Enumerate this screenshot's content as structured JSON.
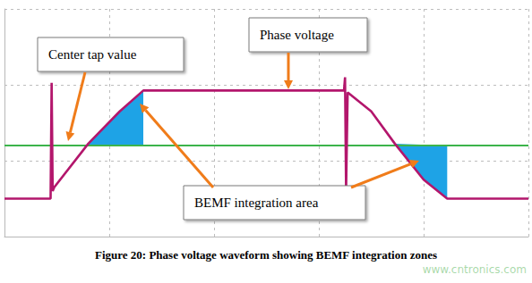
{
  "chart_data": {
    "type": "line",
    "title": "Figure 20: Phase voltage waveform showing BEMF integration zones",
    "xlim": [
      0,
      10
    ],
    "xticks": [
      0,
      2,
      4,
      6,
      8,
      10
    ],
    "ylim": [
      0,
      6
    ],
    "yticks": [
      0,
      2,
      4,
      6
    ],
    "grid": true,
    "tick_labels": false,
    "series": [
      {
        "name": "BEMF integration area",
        "type": "area",
        "color": "#1ea3e6",
        "x": [
          1.57,
          1.6,
          2.2,
          2.65,
          2.65,
          null,
          7.45,
          8.0,
          8.45,
          8.45
        ],
        "values": [
          2.4,
          2.45,
          3.3,
          3.85,
          2.4,
          null,
          2.45,
          1.5,
          1.0,
          2.4
        ]
      },
      {
        "name": "Center tap value",
        "type": "line",
        "color": "#3cb44b",
        "x": [
          0,
          10
        ],
        "values": [
          2.4,
          2.4
        ]
      },
      {
        "name": "Phase voltage",
        "type": "line",
        "color": "#b3166c",
        "x": [
          0,
          0.88,
          0.9,
          0.92,
          0.95,
          1.6,
          2.2,
          2.65,
          6.48,
          6.5,
          6.52,
          6.55,
          7.0,
          7.45,
          8.0,
          8.45,
          10
        ],
        "values": [
          1.0,
          1.0,
          4.05,
          1.2,
          1.3,
          2.45,
          3.3,
          3.85,
          3.85,
          4.2,
          1.2,
          3.8,
          3.3,
          2.45,
          1.5,
          1.0,
          1.0
        ]
      }
    ],
    "annotations": [
      "www.cntronics.com"
    ]
  }
}
